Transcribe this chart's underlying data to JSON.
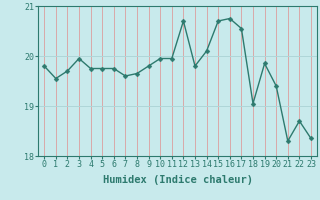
{
  "x": [
    0,
    1,
    2,
    3,
    4,
    5,
    6,
    7,
    8,
    9,
    10,
    11,
    12,
    13,
    14,
    15,
    16,
    17,
    18,
    19,
    20,
    21,
    22,
    23
  ],
  "y": [
    19.8,
    19.55,
    19.7,
    19.95,
    19.75,
    19.75,
    19.75,
    19.6,
    19.65,
    19.8,
    19.95,
    19.95,
    20.7,
    19.8,
    20.1,
    20.7,
    20.75,
    20.55,
    19.05,
    19.85,
    19.4,
    18.3,
    18.7,
    18.35
  ],
  "line_color": "#2d7a6e",
  "marker": "D",
  "marker_size": 2.5,
  "bg_color": "#c8eaec",
  "vgrid_color": "#d9a8a8",
  "hgrid_color": "#afd6d8",
  "xlabel": "Humidex (Indice chaleur)",
  "ylim": [
    18,
    21
  ],
  "xlim_min": -0.5,
  "xlim_max": 23.5,
  "yticks": [
    18,
    19,
    20,
    21
  ],
  "xticks": [
    0,
    1,
    2,
    3,
    4,
    5,
    6,
    7,
    8,
    9,
    10,
    11,
    12,
    13,
    14,
    15,
    16,
    17,
    18,
    19,
    20,
    21,
    22,
    23
  ],
  "tick_color": "#2d7a6e",
  "xlabel_fontsize": 7.5,
  "tick_fontsize": 6,
  "spine_color": "#2d7a6e",
  "linewidth": 1.0
}
